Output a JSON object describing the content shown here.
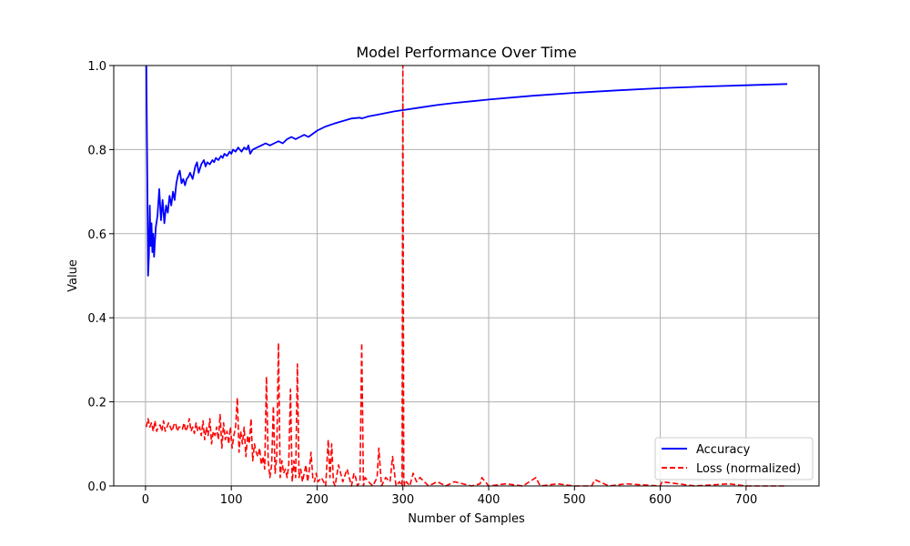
{
  "chart_data": {
    "type": "line",
    "title": "Model Performance Over Time",
    "xlabel": "Number of Samples",
    "ylabel": "Value",
    "xlim": [
      -37,
      785
    ],
    "ylim": [
      0,
      1
    ],
    "xticks": [
      0,
      100,
      200,
      300,
      400,
      500,
      600,
      700
    ],
    "yticks": [
      0.0,
      0.2,
      0.4,
      0.6,
      0.8,
      1.0
    ],
    "xtick_labels": [
      "0",
      "100",
      "200",
      "300",
      "400",
      "500",
      "600",
      "700"
    ],
    "ytick_labels": [
      "0.0",
      "0.2",
      "0.4",
      "0.6",
      "0.8",
      "1.0"
    ],
    "grid": true,
    "legend_position": "lower-right",
    "series": [
      {
        "name": "Accuracy",
        "color": "#0000ff",
        "style": "solid",
        "x": [
          1,
          2,
          3,
          4,
          5,
          6,
          7,
          8,
          9,
          10,
          11,
          12,
          14,
          16,
          18,
          20,
          22,
          24,
          26,
          28,
          30,
          32,
          34,
          36,
          38,
          40,
          42,
          44,
          46,
          48,
          50,
          52,
          55,
          58,
          60,
          62,
          65,
          68,
          70,
          72,
          75,
          78,
          80,
          82,
          85,
          88,
          90,
          92,
          95,
          98,
          100,
          102,
          105,
          108,
          110,
          112,
          115,
          118,
          120,
          122,
          125,
          130,
          135,
          140,
          145,
          150,
          155,
          160,
          165,
          170,
          175,
          180,
          185,
          190,
          200,
          210,
          220,
          230,
          240,
          250,
          252,
          255,
          260,
          270,
          280,
          290,
          300,
          320,
          340,
          360,
          380,
          400,
          450,
          500,
          550,
          600,
          650,
          700,
          748
        ],
        "y": [
          1.0,
          0.75,
          0.5,
          0.55,
          0.667,
          0.571,
          0.625,
          0.556,
          0.6,
          0.545,
          0.583,
          0.615,
          0.643,
          0.706,
          0.632,
          0.68,
          0.625,
          0.667,
          0.65,
          0.69,
          0.667,
          0.7,
          0.68,
          0.72,
          0.74,
          0.75,
          0.72,
          0.73,
          0.715,
          0.73,
          0.735,
          0.745,
          0.73,
          0.76,
          0.77,
          0.745,
          0.765,
          0.775,
          0.76,
          0.77,
          0.765,
          0.775,
          0.77,
          0.78,
          0.775,
          0.785,
          0.78,
          0.79,
          0.785,
          0.795,
          0.79,
          0.8,
          0.795,
          0.805,
          0.8,
          0.795,
          0.805,
          0.8,
          0.81,
          0.79,
          0.8,
          0.805,
          0.81,
          0.815,
          0.81,
          0.815,
          0.82,
          0.815,
          0.825,
          0.83,
          0.825,
          0.83,
          0.835,
          0.83,
          0.845,
          0.855,
          0.862,
          0.868,
          0.874,
          0.876,
          0.874,
          0.876,
          0.879,
          0.883,
          0.887,
          0.891,
          0.894,
          0.9,
          0.906,
          0.911,
          0.915,
          0.919,
          0.928,
          0.935,
          0.941,
          0.946,
          0.95,
          0.953,
          0.956
        ]
      },
      {
        "name": "Loss (normalized)",
        "color": "#ff0000",
        "style": "dashed",
        "x": [
          1,
          3,
          5,
          7,
          9,
          11,
          13,
          15,
          17,
          19,
          21,
          23,
          25,
          27,
          29,
          31,
          33,
          35,
          37,
          39,
          41,
          43,
          45,
          47,
          49,
          51,
          53,
          55,
          57,
          59,
          61,
          63,
          65,
          67,
          69,
          71,
          73,
          75,
          77,
          79,
          81,
          83,
          85,
          87,
          89,
          91,
          93,
          95,
          97,
          99,
          101,
          103,
          105,
          107,
          109,
          111,
          113,
          115,
          117,
          119,
          121,
          123,
          125,
          127,
          129,
          131,
          133,
          135,
          137,
          139,
          141,
          143,
          145,
          147,
          149,
          151,
          153,
          155,
          157,
          159,
          161,
          163,
          165,
          167,
          169,
          171,
          173,
          175,
          177,
          179,
          181,
          183,
          185,
          187,
          189,
          191,
          193,
          195,
          197,
          199,
          201,
          205,
          210,
          213,
          215,
          217,
          219,
          221,
          225,
          230,
          235,
          240,
          243,
          245,
          247,
          250,
          252,
          254,
          256,
          260,
          265,
          270,
          272,
          275,
          280,
          285,
          288,
          292,
          296,
          299,
          300,
          301,
          302,
          304,
          308,
          312,
          316,
          320,
          330,
          340,
          350,
          360,
          380,
          390,
          392,
          400,
          420,
          440,
          455,
          460,
          480,
          500,
          520,
          524,
          540,
          560,
          600,
          602,
          640,
          680,
          700,
          748
        ],
        "y": [
          0.14,
          0.16,
          0.14,
          0.15,
          0.13,
          0.155,
          0.13,
          0.14,
          0.145,
          0.13,
          0.155,
          0.13,
          0.14,
          0.15,
          0.14,
          0.13,
          0.145,
          0.15,
          0.13,
          0.14,
          0.14,
          0.135,
          0.15,
          0.13,
          0.14,
          0.16,
          0.13,
          0.14,
          0.125,
          0.15,
          0.13,
          0.14,
          0.12,
          0.155,
          0.11,
          0.14,
          0.12,
          0.16,
          0.1,
          0.13,
          0.12,
          0.14,
          0.11,
          0.17,
          0.09,
          0.15,
          0.11,
          0.13,
          0.1,
          0.14,
          0.09,
          0.12,
          0.14,
          0.21,
          0.08,
          0.13,
          0.1,
          0.14,
          0.07,
          0.12,
          0.1,
          0.16,
          0.06,
          0.1,
          0.08,
          0.07,
          0.09,
          0.05,
          0.07,
          0.04,
          0.26,
          0.06,
          0.02,
          0.05,
          0.19,
          0.03,
          0.07,
          0.34,
          0.02,
          0.06,
          0.03,
          0.04,
          0.02,
          0.05,
          0.23,
          0.01,
          0.06,
          0.02,
          0.29,
          0.02,
          0.04,
          0.01,
          0.03,
          0.05,
          0.01,
          0.04,
          0.08,
          0.02,
          0.01,
          0.03,
          0.01,
          0.02,
          0.0,
          0.11,
          0.02,
          0.1,
          0.01,
          0.0,
          0.05,
          0.01,
          0.04,
          0.0,
          0.03,
          0.02,
          0.0,
          0.01,
          0.34,
          0.0,
          0.02,
          0.01,
          0.0,
          0.02,
          0.09,
          0.0,
          0.02,
          0.01,
          0.07,
          0.0,
          0.01,
          0.0,
          1.0,
          0.02,
          0.0,
          0.01,
          0.0,
          0.03,
          0.01,
          0.02,
          0.0,
          0.01,
          0.0,
          0.01,
          0.0,
          0.005,
          0.02,
          0.0,
          0.005,
          0.0,
          0.02,
          0.0,
          0.005,
          0.0,
          0.0,
          0.015,
          0.0,
          0.005,
          0.0,
          0.01,
          0.0,
          0.005,
          0.0,
          0.0
        ]
      }
    ]
  }
}
